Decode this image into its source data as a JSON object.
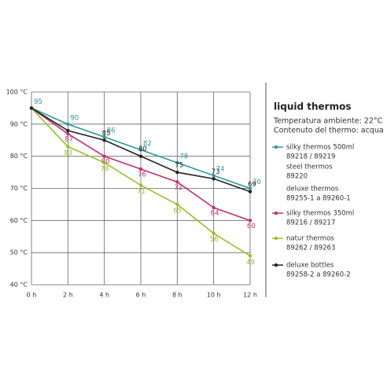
{
  "chart_data": {
    "type": "line",
    "title": "liquid thermos",
    "subtitle": [
      "Temperatura ambiente: 22°C",
      "Contenuto del thermo: acqua"
    ],
    "categories": [
      "0 h",
      "2 h",
      "4 h",
      "6 h",
      "8 h",
      "10 h",
      "12 h"
    ],
    "ylim": [
      40,
      100
    ],
    "yticks": [
      {
        "value": 40,
        "label": "40 °C"
      },
      {
        "value": 50,
        "label": "50 °C"
      },
      {
        "value": 60,
        "label": "60 °C"
      },
      {
        "value": 70,
        "label": "70 °C"
      },
      {
        "value": 80,
        "label": "80 °C"
      },
      {
        "value": 90,
        "label": "90 °C"
      },
      {
        "value": 100,
        "label": "100 °C"
      }
    ],
    "grid": true,
    "series": [
      {
        "name": "silky thermos 500ml",
        "code": "89218 / 89219",
        "color": "#2a9a9a",
        "values": [
          95,
          90,
          86,
          82,
          78,
          74,
          70
        ],
        "labeled": [
          true,
          true,
          true,
          true,
          true,
          true,
          true
        ]
      },
      {
        "name": "silky thermos 350ml",
        "code": "89216 / 89217",
        "color": "#c2306a",
        "values": [
          95,
          87,
          80,
          76,
          72,
          64,
          60
        ],
        "labeled": [
          false,
          true,
          true,
          true,
          true,
          true,
          true
        ]
      },
      {
        "name": "natur thermos",
        "code": "89262 / 89263",
        "color": "#9bbf2a",
        "values": [
          95,
          83,
          78,
          71,
          65,
          56,
          49
        ],
        "labeled": [
          false,
          true,
          true,
          true,
          true,
          true,
          true
        ]
      },
      {
        "name": "deluxe bottles",
        "code": "89258-2 a 89260-2",
        "color": "#222222",
        "values": [
          95,
          88,
          85,
          80,
          75,
          73,
          69
        ],
        "labeled": [
          false,
          false,
          true,
          true,
          true,
          true,
          true
        ]
      }
    ],
    "legend_extra": [
      {
        "name": "steel thermos",
        "code": "89220"
      },
      {
        "name": "deluxe thermos",
        "code": "89255-1 a 89260-1"
      }
    ]
  }
}
